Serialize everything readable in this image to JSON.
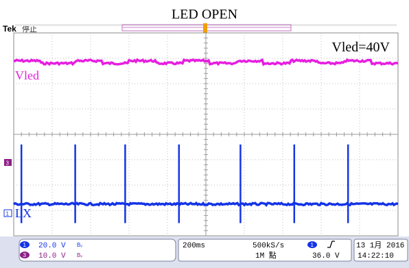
{
  "title": "LED OPEN",
  "brand": "Tek",
  "acq_state": "停止",
  "annotation": "Vled=40V",
  "colors": {
    "ch1": "#1434e6",
    "ch3": "#e61ee0",
    "ch3_marker": "#8c1f86",
    "grid": "#bdbdbd",
    "panel": "#cfd3e6"
  },
  "channels": [
    {
      "id": "1",
      "label": "LX",
      "scale": "20.0 V",
      "bw": "Bᵥ"
    },
    {
      "id": "3",
      "label": "Vled",
      "scale": "10.0 V",
      "bw": "Bᵥ"
    }
  ],
  "horizontal": {
    "timebase": "200ms",
    "sample_rate": "500kS/s",
    "record_length": "1M 點"
  },
  "trigger": {
    "source": "1",
    "slope_icon": "rising-edge-icon",
    "level": "36.0 V"
  },
  "datetime": {
    "date": "13 1月 2016",
    "time": "14:22:10"
  },
  "chart_data": {
    "type": "line",
    "title": "LED OPEN",
    "x_divisions": 10,
    "y_divisions": 8,
    "grid": true,
    "series": [
      {
        "name": "Vled",
        "channel": "3",
        "description_levels_div": {
          "base": 6.8,
          "step_up": 6.9
        },
        "steps_at_div": [
          0.0,
          1.6,
          3.0,
          4.4,
          5.8,
          7.2,
          8.6
        ]
      },
      {
        "name": "LX",
        "channel": "1",
        "baseline_div": 1.25,
        "spike_top_div": 3.6,
        "spike_bottom_div": 0.5,
        "spikes_at_div": [
          0.2,
          1.6,
          2.9,
          4.3,
          5.9,
          7.3,
          8.7
        ]
      }
    ]
  }
}
